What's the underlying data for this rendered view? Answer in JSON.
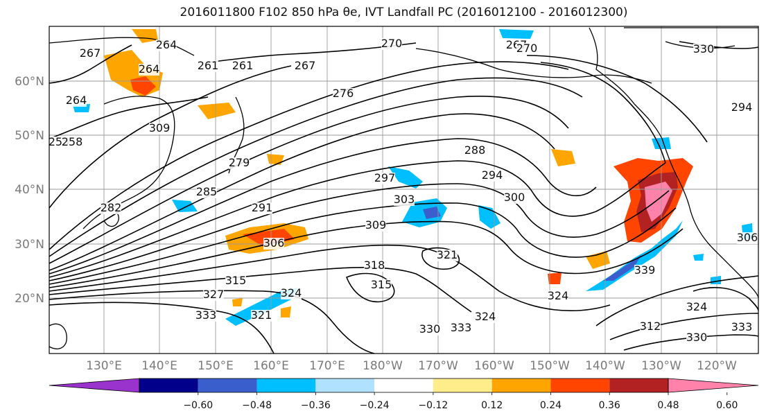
{
  "title": "2016011800 F102 850 hPa θe, IVT Landfall PC (2016012100 - 2016012300)",
  "map": {
    "lat_labels": [
      "60°N",
      "50°N",
      "40°N",
      "30°N",
      "20°N"
    ],
    "lon_labels": [
      "130°E",
      "140°E",
      "150°E",
      "160°E",
      "170°E",
      "180°W",
      "170°W",
      "160°W",
      "150°W",
      "140°W",
      "130°W",
      "120°W"
    ],
    "contour_labels": [
      "267",
      "264",
      "270",
      "267",
      "261",
      "267",
      "264",
      "255",
      "258",
      "276",
      "279",
      "285",
      "291",
      "297",
      "303",
      "309",
      "306",
      "288",
      "294",
      "300",
      "321",
      "315",
      "318",
      "315",
      "324",
      "327",
      "333",
      "321",
      "324",
      "330",
      "333",
      "324",
      "324",
      "312",
      "330",
      "339",
      "309",
      "330",
      "333",
      "282",
      "306",
      "294",
      "264",
      "261",
      "270"
    ],
    "colors": {
      "coast": "#000000",
      "contour": "#000000",
      "grid": "#9a9a9a",
      "axis_label": "#7a7a7a"
    }
  },
  "colorbar": {
    "ticks": [
      "−0.60",
      "−0.48",
      "−0.36",
      "−0.24",
      "−0.12",
      "0.12",
      "0.24",
      "0.36",
      "0.48",
      "0.60"
    ],
    "colors": [
      "#9a32cd",
      "#00008b",
      "#3a5fcd",
      "#00bfff",
      "#b0e2ff",
      "#ffffff",
      "#ffec8b",
      "#ffa500",
      "#ff4500",
      "#b22222",
      "#ff82ab"
    ]
  }
}
